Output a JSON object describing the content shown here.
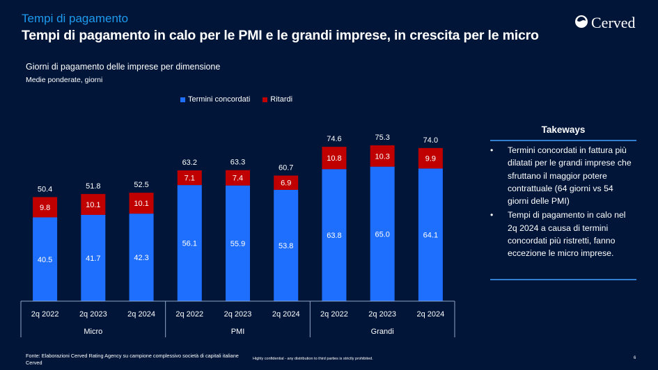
{
  "header": {
    "section": "Tempi di pagamento",
    "title": "Tempi di pagamento in calo per le PMI e le grandi imprese, in crescita per le micro",
    "logo": {
      "icon": "cerved-logo-icon",
      "name": "Cerved"
    }
  },
  "colors": {
    "background": "#001538",
    "accent": "#1e9bef",
    "termini": "#1f6fff",
    "ritardi": "#c00000"
  },
  "chart_data": {
    "type": "bar",
    "stacked": true,
    "title": "Giorni di pagamento delle imprese per dimensione",
    "subtitle": "Medie ponderate, giorni",
    "categories": [
      "2q 2022",
      "2q 2023",
      "2q 2024",
      "2q 2022",
      "2q 2023",
      "2q 2024",
      "2q 2022",
      "2q 2023",
      "2q 2024"
    ],
    "groups": [
      {
        "name": "Micro",
        "count": 3
      },
      {
        "name": "PMI",
        "count": 3
      },
      {
        "name": "Grandi",
        "count": 3
      }
    ],
    "series": [
      {
        "name": "Termini concordati",
        "color": "#1f6fff",
        "values": [
          40.5,
          41.7,
          42.3,
          56.1,
          55.9,
          53.8,
          63.8,
          65.0,
          64.1
        ]
      },
      {
        "name": "Ritardi",
        "color": "#c00000",
        "values": [
          9.8,
          10.1,
          10.1,
          7.1,
          7.4,
          6.9,
          10.8,
          10.3,
          9.9
        ]
      }
    ],
    "totals": [
      50.4,
      51.8,
      52.5,
      63.2,
      63.3,
      60.7,
      74.6,
      75.3,
      74.0
    ],
    "xlabel": "",
    "ylabel": "",
    "ylim": [
      0,
      80
    ],
    "grid": false,
    "legend": "top"
  },
  "takeaways": {
    "title": "Takeways",
    "items": [
      "Termini concordati in fattura più dilatati per le grandi imprese che sfruttano il maggior potere contrattuale (64 giorni vs 54 giorni delle PMI)",
      "Tempi di pagamento in calo nel 2q 2024 a causa di termini concordati più ristretti, fanno eccezione le micro imprese."
    ],
    "bullet": "•"
  },
  "footer": {
    "source": "Fonte: Elaborazioni Cerved Rating Agency su campione complessivo società di capitali italiane Cerved",
    "confidential": "Highly confidential  - any distribution to third parties is strictly prohibited.",
    "page": "6"
  }
}
